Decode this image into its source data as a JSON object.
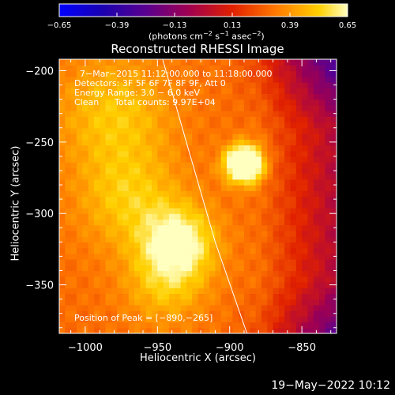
{
  "chart_data": {
    "type": "heatmap",
    "title": "Reconstructed RHESSI Image",
    "xlabel": "Heliocentric X (arcsec)",
    "ylabel": "Heliocentric Y (arcsec)",
    "xlim": [
      -1018,
      -826
    ],
    "ylim": [
      -384,
      -192
    ],
    "xticks": [
      -1000,
      -950,
      -900,
      -850
    ],
    "xtick_labels": [
      "−1000",
      "−950",
      "−900",
      "−850"
    ],
    "yticks": [
      -200,
      -250,
      -300,
      -350
    ],
    "ytick_labels": [
      "−200",
      "−250",
      "−300",
      "−350"
    ],
    "colorbar": {
      "range": [
        -0.65,
        0.65
      ],
      "tick_values": [
        -0.65,
        -0.39,
        -0.13,
        0.13,
        0.39,
        0.65
      ],
      "tick_labels": [
        "−0.65",
        "−0.39",
        "−0.13",
        "0.13",
        "0.39",
        "0.65"
      ],
      "unit_parts": [
        "(photons cm",
        "−2",
        " s",
        "−1",
        " asec",
        "−2",
        ")"
      ],
      "colormap": "hot"
    },
    "annotations": {
      "time_range": "7−Mar−2015 11:12:00.000  to  11:18:00.000",
      "detectors": "Detectors: 3F 5F 6F 7F 8F 9F, Att 0",
      "energy_range": "Energy Range: 3.0 − 6.0 keV",
      "clean": "Clean",
      "total_counts": "Total counts: 9.97E+04",
      "peak_position": "Position of Peak = [−890,−265]"
    },
    "peak": {
      "x": -890,
      "y": -265
    },
    "limb_arc": [
      [
        -947,
        -190
      ],
      [
        -930,
        -250
      ],
      [
        -910,
        -320
      ],
      [
        -888,
        -384
      ]
    ],
    "sources": [
      {
        "x": -890,
        "y": -265,
        "sigma": 9,
        "amp": 0.7
      },
      {
        "x": -935,
        "y": -320,
        "sigma": 18,
        "amp": 0.35
      },
      {
        "x": -970,
        "y": -290,
        "sigma": 25,
        "amp": 0.2
      },
      {
        "x": -980,
        "y": -230,
        "sigma": 28,
        "amp": 0.2
      },
      {
        "x": -945,
        "y": -350,
        "sigma": 20,
        "amp": 0.18
      }
    ],
    "background_level": 0.3,
    "background_falloff": "decreases toward upper-right and lower-right"
  },
  "footer": {
    "date": "19−May−2022 10:12"
  }
}
